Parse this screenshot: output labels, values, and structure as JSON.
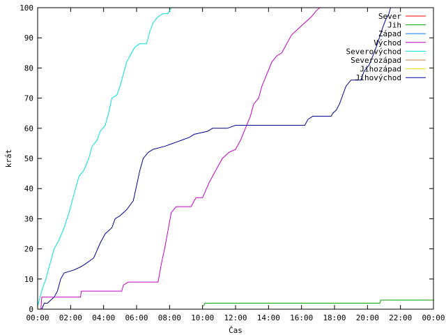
{
  "chart_data": {
    "type": "line",
    "xlabel": "Čas",
    "ylabel": "krát",
    "xlim": [
      0,
      24
    ],
    "ylim": [
      0,
      100
    ],
    "x_ticks": [
      {
        "value": 0,
        "label": "00:00"
      },
      {
        "value": 2,
        "label": "02:00"
      },
      {
        "value": 4,
        "label": "04:00"
      },
      {
        "value": 6,
        "label": "06:00"
      },
      {
        "value": 8,
        "label": "08:00"
      },
      {
        "value": 10,
        "label": "10:00"
      },
      {
        "value": 12,
        "label": "12:00"
      },
      {
        "value": 14,
        "label": "14:00"
      },
      {
        "value": 16,
        "label": "16:00"
      },
      {
        "value": 18,
        "label": "18:00"
      },
      {
        "value": 20,
        "label": "20:00"
      },
      {
        "value": 22,
        "label": "22:00"
      },
      {
        "value": 24,
        "label": "00:00"
      }
    ],
    "y_ticks": [
      0,
      10,
      20,
      30,
      40,
      50,
      60,
      70,
      80,
      90,
      100
    ],
    "grid": false,
    "legend_position": "top-right",
    "series": [
      {
        "name": "Sever",
        "color": "#ff0000",
        "points": []
      },
      {
        "name": "Jih",
        "color": "#00a000",
        "points": [
          [
            10.05,
            1
          ],
          [
            10.15,
            2
          ],
          [
            20.75,
            2
          ],
          [
            20.8,
            3
          ],
          [
            24,
            3
          ]
        ]
      },
      {
        "name": "Západ",
        "color": "#0080ff",
        "points": []
      },
      {
        "name": "Východ",
        "color": "#c000c0",
        "points": [
          [
            0.2,
            0
          ],
          [
            0.25,
            4
          ],
          [
            2.6,
            4
          ],
          [
            2.65,
            6
          ],
          [
            5.1,
            6
          ],
          [
            5.2,
            8
          ],
          [
            5.5,
            9
          ],
          [
            7.3,
            9
          ],
          [
            7.5,
            15
          ],
          [
            7.7,
            20
          ],
          [
            7.9,
            26
          ],
          [
            8.1,
            32
          ],
          [
            8.4,
            34
          ],
          [
            9.3,
            34
          ],
          [
            9.6,
            37
          ],
          [
            10.0,
            37
          ],
          [
            10.4,
            42
          ],
          [
            10.8,
            46
          ],
          [
            11.2,
            50
          ],
          [
            11.6,
            52
          ],
          [
            12.0,
            53
          ],
          [
            12.3,
            56
          ],
          [
            12.6,
            60
          ],
          [
            12.9,
            64
          ],
          [
            13.1,
            68
          ],
          [
            13.4,
            70
          ],
          [
            13.6,
            74
          ],
          [
            13.9,
            78
          ],
          [
            14.2,
            82
          ],
          [
            14.5,
            84
          ],
          [
            14.8,
            85
          ],
          [
            15.1,
            88
          ],
          [
            15.4,
            91
          ],
          [
            15.8,
            93
          ],
          [
            16.2,
            95
          ],
          [
            16.6,
            97
          ],
          [
            16.9,
            99
          ],
          [
            17.1,
            100
          ]
        ]
      },
      {
        "name": "Severovýchod",
        "color": "#00e0e0",
        "points": [
          [
            0.0,
            1
          ],
          [
            0.15,
            4
          ],
          [
            0.3,
            7
          ],
          [
            0.5,
            10
          ],
          [
            0.8,
            16
          ],
          [
            1.0,
            20
          ],
          [
            1.3,
            23
          ],
          [
            1.6,
            27
          ],
          [
            1.9,
            32
          ],
          [
            2.2,
            38
          ],
          [
            2.5,
            44
          ],
          [
            2.8,
            46
          ],
          [
            3.1,
            50
          ],
          [
            3.3,
            54
          ],
          [
            3.6,
            56
          ],
          [
            3.8,
            59
          ],
          [
            4.1,
            61
          ],
          [
            4.3,
            65
          ],
          [
            4.5,
            70
          ],
          [
            4.8,
            71
          ],
          [
            5.0,
            74
          ],
          [
            5.2,
            78
          ],
          [
            5.4,
            82
          ],
          [
            5.6,
            84
          ],
          [
            5.9,
            87
          ],
          [
            6.2,
            88
          ],
          [
            6.6,
            88
          ],
          [
            6.8,
            92
          ],
          [
            7.0,
            95
          ],
          [
            7.3,
            97
          ],
          [
            7.6,
            98
          ],
          [
            7.9,
            98
          ],
          [
            8.0,
            99
          ],
          [
            8.1,
            100
          ]
        ]
      },
      {
        "name": "Severozápad",
        "color": "#c08040",
        "points": []
      },
      {
        "name": "Jihozápad",
        "color": "#e0e000",
        "points": []
      },
      {
        "name": "Jihovýchod",
        "color": "#000090",
        "points": [
          [
            0.25,
            0
          ],
          [
            0.4,
            2
          ],
          [
            0.6,
            2
          ],
          [
            0.8,
            3
          ],
          [
            1.0,
            4
          ],
          [
            1.2,
            6
          ],
          [
            1.4,
            10
          ],
          [
            1.6,
            12
          ],
          [
            2.2,
            13
          ],
          [
            2.6,
            14
          ],
          [
            2.9,
            15
          ],
          [
            3.4,
            17
          ],
          [
            3.8,
            22
          ],
          [
            4.1,
            25
          ],
          [
            4.5,
            27
          ],
          [
            4.7,
            30
          ],
          [
            5.0,
            31
          ],
          [
            5.4,
            33
          ],
          [
            5.8,
            36
          ],
          [
            6.0,
            41
          ],
          [
            6.2,
            46
          ],
          [
            6.4,
            50
          ],
          [
            6.7,
            52
          ],
          [
            7.0,
            53
          ],
          [
            7.7,
            54
          ],
          [
            8.2,
            55
          ],
          [
            8.7,
            56
          ],
          [
            9.2,
            57
          ],
          [
            9.5,
            58
          ],
          [
            10.3,
            59
          ],
          [
            10.6,
            60
          ],
          [
            11.5,
            60
          ],
          [
            12.0,
            61
          ],
          [
            16.2,
            61
          ],
          [
            16.4,
            63
          ],
          [
            16.7,
            64
          ],
          [
            17.8,
            64
          ],
          [
            17.9,
            65
          ],
          [
            18.1,
            66
          ],
          [
            18.3,
            68
          ],
          [
            18.5,
            71
          ],
          [
            18.7,
            74
          ],
          [
            19.0,
            76
          ],
          [
            19.6,
            76
          ],
          [
            19.8,
            79
          ],
          [
            20.1,
            81
          ],
          [
            20.4,
            85
          ],
          [
            20.6,
            88
          ],
          [
            20.9,
            93
          ],
          [
            21.1,
            96
          ],
          [
            21.3,
            98
          ],
          [
            21.4,
            100
          ]
        ]
      }
    ]
  }
}
